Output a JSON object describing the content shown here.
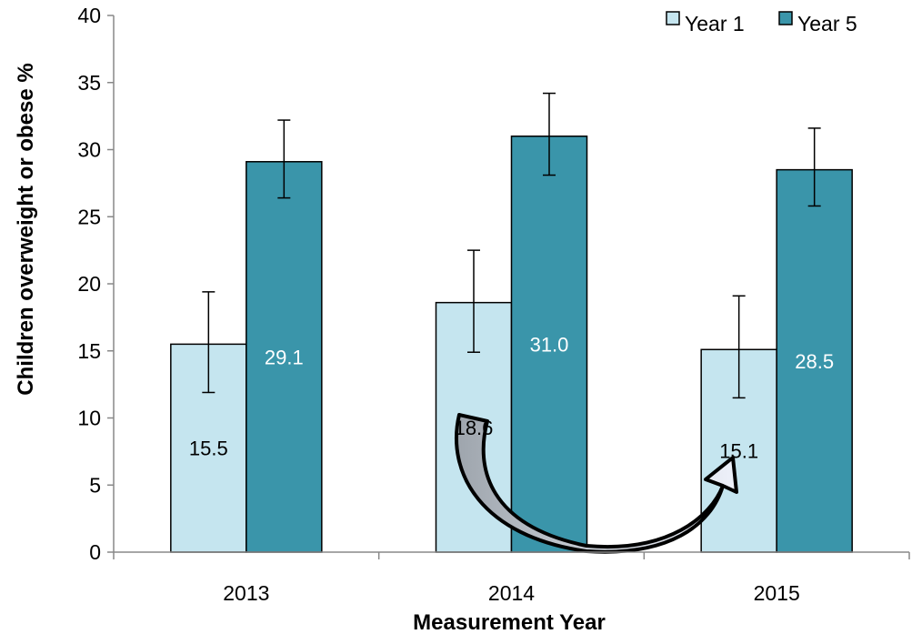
{
  "chart_data": {
    "type": "bar",
    "title": "",
    "xlabel": "Measurement Year",
    "ylabel": "Children overweight or obese %",
    "categories": [
      "2013",
      "2014",
      "2015"
    ],
    "ylim": [
      0,
      40
    ],
    "yticks": [
      0,
      5,
      10,
      15,
      20,
      25,
      30,
      35,
      40
    ],
    "grid": false,
    "legend_position": "top-right",
    "series": [
      {
        "name": "Year 1",
        "values": [
          15.5,
          18.6,
          15.1
        ],
        "labels": [
          "15.5",
          "18.6",
          "15.1"
        ],
        "error_low": [
          11.9,
          14.9,
          11.5
        ],
        "error_high": [
          19.4,
          22.5,
          19.1
        ],
        "color": "#c5e5ef",
        "label_color": "#000000"
      },
      {
        "name": "Year 5",
        "values": [
          29.1,
          31.0,
          28.5
        ],
        "labels": [
          "29.1",
          "31.0",
          "28.5"
        ],
        "error_low": [
          26.4,
          28.1,
          25.8
        ],
        "error_high": [
          32.2,
          34.2,
          31.6
        ],
        "color": "#3a95aa",
        "label_color": "#ffffff"
      }
    ],
    "annotation": {
      "type": "curved-arrow",
      "from_category": "2014",
      "to_category": "2015"
    }
  }
}
